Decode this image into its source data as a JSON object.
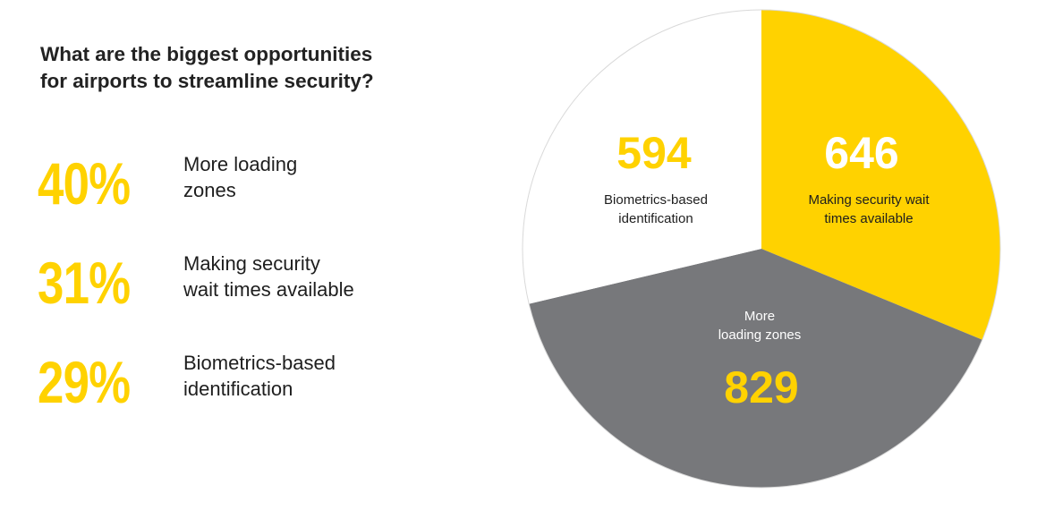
{
  "header": {
    "title_lines": [
      "What are the biggest opportunities",
      "for airports to streamline security?"
    ]
  },
  "stats": [
    {
      "percent": "40%",
      "label_lines": [
        "More loading",
        "zones"
      ]
    },
    {
      "percent": "31%",
      "label_lines": [
        "Making security",
        "wait times available"
      ]
    },
    {
      "percent": "29%",
      "label_lines": [
        "Biometrics-based",
        "identification"
      ]
    }
  ],
  "colors": {
    "yellow": "#ffd200",
    "gray": "#77787b",
    "white": "#ffffff",
    "text_dark": "#1e1e1e"
  },
  "chart_data": {
    "type": "pie",
    "title": "What are the biggest opportunities for airports to streamline security?",
    "slices": [
      {
        "value": 646,
        "value_label": "646",
        "label_lines": [
          "Making security wait",
          "times available"
        ],
        "color": "#ffd200",
        "value_color": "#ffffff",
        "label_color": "#1e1e1e"
      },
      {
        "value": 829,
        "value_label": "829",
        "label_lines": [
          "More",
          "loading zones"
        ],
        "color": "#77787b",
        "value_color": "#ffd200",
        "label_color": "#ffffff"
      },
      {
        "value": 594,
        "value_label": "594",
        "label_lines": [
          "Biometrics-based",
          "identification"
        ],
        "color": "#ffffff",
        "value_color": "#ffd200",
        "label_color": "#1e1e1e"
      }
    ],
    "start_angle": "12 o'clock",
    "direction": "clockwise",
    "legend": "none"
  }
}
